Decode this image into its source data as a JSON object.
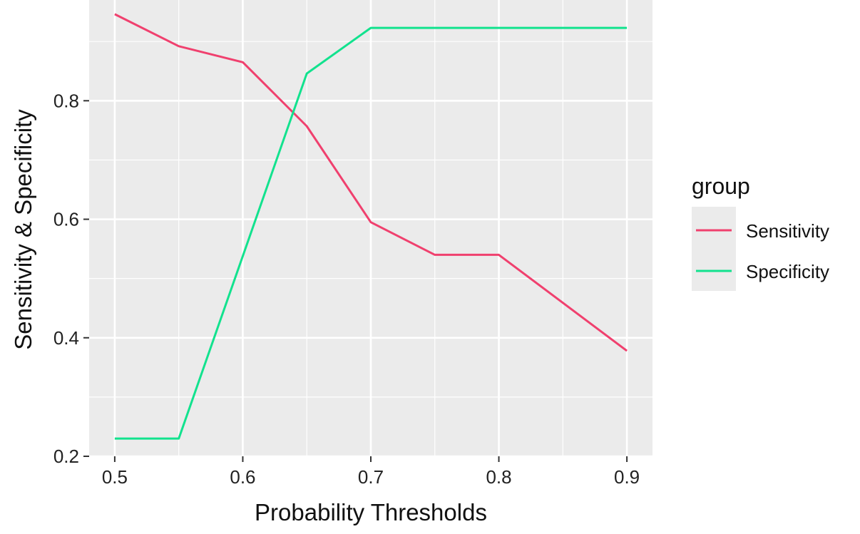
{
  "chart_data": {
    "type": "line",
    "xlabel": "Probability Thresholds",
    "ylabel": "Sensitivity & Specificity",
    "xlim": [
      0.48,
      0.92
    ],
    "ylim": [
      0.2,
      0.97
    ],
    "x_ticks": [
      0.5,
      0.6,
      0.7,
      0.8,
      0.9
    ],
    "x_tick_labels": [
      "0.5",
      "0.6",
      "0.7",
      "0.8",
      "0.9"
    ],
    "y_ticks": [
      0.2,
      0.4,
      0.6,
      0.8
    ],
    "y_tick_labels": [
      "0.2",
      "0.4",
      "0.6",
      "0.8"
    ],
    "x": [
      0.5,
      0.55,
      0.6,
      0.65,
      0.7,
      0.75,
      0.8,
      0.9
    ],
    "series": [
      {
        "name": "Sensitivity",
        "color": "#f0406e",
        "values": [
          0.946,
          0.892,
          0.865,
          0.757,
          0.595,
          0.54,
          0.54,
          0.378
        ]
      },
      {
        "name": "Specificity",
        "color": "#12e28e",
        "values": [
          0.23,
          0.23,
          0.538,
          0.846,
          0.923,
          0.923,
          0.923,
          0.923
        ]
      }
    ],
    "legend": {
      "title": "group",
      "position": "right"
    },
    "grid": true,
    "panel_background": "#ebebeb"
  }
}
